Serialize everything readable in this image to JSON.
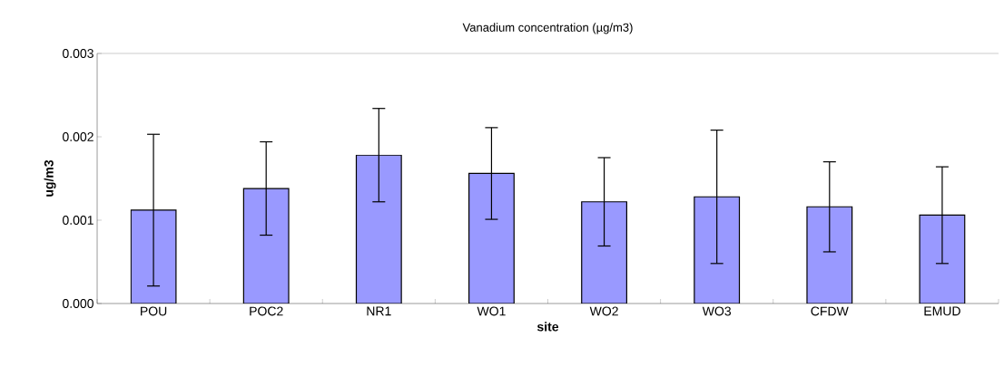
{
  "chart_data": {
    "type": "bar",
    "title": "Vanadium concentration (µg/m3)",
    "xlabel": "site",
    "ylabel": "ug/m3",
    "categories": [
      "POU",
      "POC2",
      "NR1",
      "WO1",
      "WO2",
      "WO3",
      "CFDW",
      "EMUD"
    ],
    "values": [
      0.00112,
      0.00138,
      0.00178,
      0.00156,
      0.00122,
      0.00128,
      0.00116,
      0.00106
    ],
    "errors": [
      0.00091,
      0.00056,
      0.00056,
      0.00055,
      0.00053,
      0.0008,
      0.00054,
      0.00058
    ],
    "color": "#9999ff",
    "ylim": [
      0,
      0.003
    ],
    "yticks": [
      {
        "value": 0,
        "label": "0.000"
      },
      {
        "value": 0.001,
        "label": "0.001"
      },
      {
        "value": 0.002,
        "label": "0.002"
      },
      {
        "value": 0.003,
        "label": "0.003"
      }
    ],
    "grid": false
  }
}
